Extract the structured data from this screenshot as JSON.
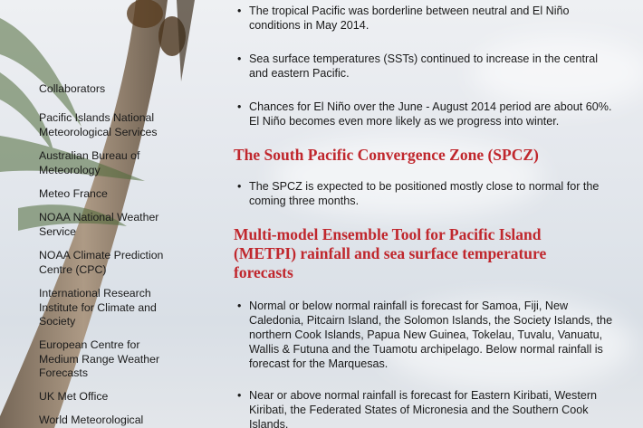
{
  "sidebar": {
    "title": "Collaborators",
    "items": [
      "Pacific Islands National Meteorological Services",
      "Australian Bureau of Meteorology",
      "Meteo France",
      "NOAA National Weather Service",
      "NOAA Climate Prediction Centre (CPC)",
      "International Research Institute for Climate and Society",
      "European Centre for Medium Range Weather Forecasts",
      "UK Met Office",
      "World Meteorological"
    ]
  },
  "main": {
    "bullets1": [
      "The tropical Pacific was borderline between neutral and El Niño conditions in May 2014.",
      "Sea surface temperatures (SSTs) continued to increase in the central and eastern Pacific.",
      "Chances for El Niño over the June - August 2014 period are about 60%. El Niño becomes even more likely as we progress into winter."
    ],
    "heading_spcz": "The South Pacific Convergence Zone (SPCZ)",
    "bullets2": [
      "The SPCZ is expected to be positioned mostly close to normal for the coming three months."
    ],
    "heading_metpi": "Multi-model Ensemble Tool for Pacific Island (METPI) rainfall and sea surface temperature forecasts",
    "bullets3": [
      "Normal or below normal rainfall is forecast for Samoa, Fiji, New Caledonia, Pitcairn Island, the Solomon Islands, the Society Islands, the northern Cook Islands, Papua New Guinea, Tokelau, Tuvalu, Vanuatu, Wallis & Futuna and the Tuamotu archipelago. Below normal rainfall is forecast for the Marquesas.",
      "Near or above normal rainfall is forecast for Eastern Kiribati, Western Kiribati, the Federated States of Micronesia and the Southern Cook Islands."
    ]
  },
  "colors": {
    "heading": "#c0272d"
  }
}
